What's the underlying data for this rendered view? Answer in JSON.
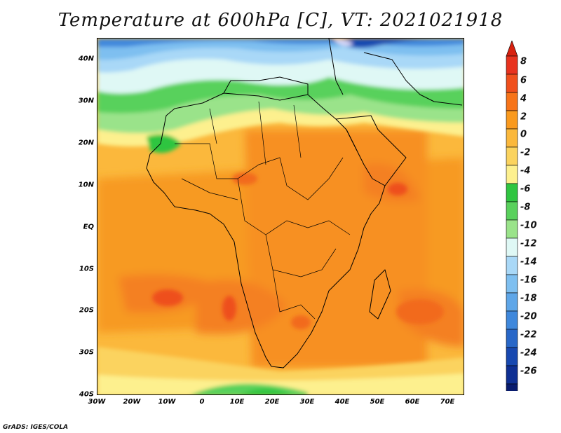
{
  "title": "Temperature at 600hPa [C], VT: 2021021918",
  "credit": "GrADS: IGES/COLA",
  "map": {
    "lat_labels": [
      "40N",
      "30N",
      "20N",
      "10N",
      "EQ",
      "10S",
      "20S",
      "30S",
      "40S"
    ],
    "lon_labels": [
      "30W",
      "20W",
      "10W",
      "0",
      "10E",
      "20E",
      "30E",
      "40E",
      "50E",
      "60E",
      "70E"
    ]
  },
  "colorbar": {
    "labels": [
      "8",
      "6",
      "4",
      "2",
      "0",
      "-2",
      "-4",
      "-6",
      "-8",
      "-10",
      "-12",
      "-14",
      "-16",
      "-18",
      "-20",
      "-22",
      "-24",
      "-26"
    ],
    "colors": [
      "#e8321e",
      "#f04f1c",
      "#f77419",
      "#fa9a1e",
      "#fbb83c",
      "#fbd35e",
      "#fdf08e",
      "#2fc540",
      "#59d15c",
      "#9ae38a",
      "#dff8f5",
      "#a9d8f7",
      "#7ebff0",
      "#5ea6e8",
      "#3f88dc",
      "#2867c8",
      "#1748b0",
      "#0e2f93",
      "#081b6e"
    ],
    "top_color": "#d8210f",
    "bottom_color": "#d6d6f5"
  },
  "colors": {
    "land_base": "#f7a12c",
    "ocean_base": "#fbb83c",
    "coastline": "#000000"
  }
}
